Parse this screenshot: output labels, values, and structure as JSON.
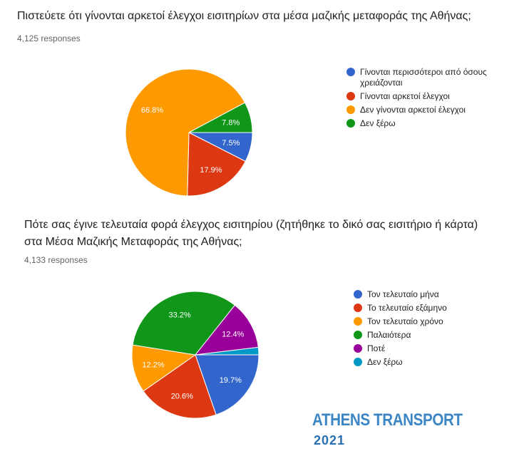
{
  "chart_data": [
    {
      "type": "pie",
      "title": "Πιστεύετε ότι γίνονται αρκετοί έλεγχοι εισιτηρίων στα μέσα μαζικής μεταφοράς της Αθήνας;",
      "subtitle": "4,125 responses",
      "slices": [
        {
          "label": "Γίνονται περισσότεροι από όσους χρειάζονται",
          "value": 7.5,
          "display": "7.5%",
          "color": "#3366cc"
        },
        {
          "label": "Γίνονται αρκετοί έλεγχοι",
          "value": 17.9,
          "display": "17.9%",
          "color": "#dc3912"
        },
        {
          "label": "Δεν γίνονται αρκετοί έλεγχοι",
          "value": 66.8,
          "display": "66.8%",
          "color": "#ff9900"
        },
        {
          "label": "Δεν ξέρω",
          "value": 7.8,
          "display": "7.8%",
          "color": "#109618"
        }
      ],
      "legend_position": "right"
    },
    {
      "type": "pie",
      "title": "Πότε σας έγινε τελευταία φορά έλεγχος εισιτηρίου (ζητήθηκε το δικό σας εισιτήριο ή κάρτα) στα Μέσα Μαζικής Μεταφοράς της Αθήνας;",
      "subtitle": "4,133 responses",
      "slices": [
        {
          "label": "Τον τελευταίο μήνα",
          "value": 19.7,
          "display": "19.7%",
          "color": "#3366cc"
        },
        {
          "label": "Το τελευταίο εξάμηνο",
          "value": 20.6,
          "display": "20.6%",
          "color": "#dc3912"
        },
        {
          "label": "Τον τελευταίο χρόνο",
          "value": 12.2,
          "display": "12.2%",
          "color": "#ff9900"
        },
        {
          "label": "Παλαιότερα",
          "value": 33.2,
          "display": "33.2%",
          "color": "#109618"
        },
        {
          "label": "Ποτέ",
          "value": 12.4,
          "display": "12.4%",
          "color": "#990099"
        },
        {
          "label": "Δεν ξέρω",
          "value": 1.9,
          "display": "",
          "color": "#0099c6"
        }
      ],
      "legend_position": "right"
    }
  ],
  "questions": [
    {
      "title_lines": [
        "Πιστεύετε ότι γίνονται αρκετοί έλεγχοι εισιτηρίων στα μέσα μαζικής μεταφοράς της Αθήνας;"
      ],
      "responses": "4,125 responses"
    },
    {
      "title_lines": [
        "Πότε σας έγινε τελευταία φορά έλεγχος εισιτηρίου (ζητήθηκε το δικό σας εισιτήριο ή κάρτα)",
        "στα Μέσα Μαζικής Μεταφοράς της Αθήνας;"
      ],
      "responses": "4,133 responses"
    }
  ],
  "brand": {
    "name": "ATHENS TRANSPORT",
    "year": "2021"
  }
}
